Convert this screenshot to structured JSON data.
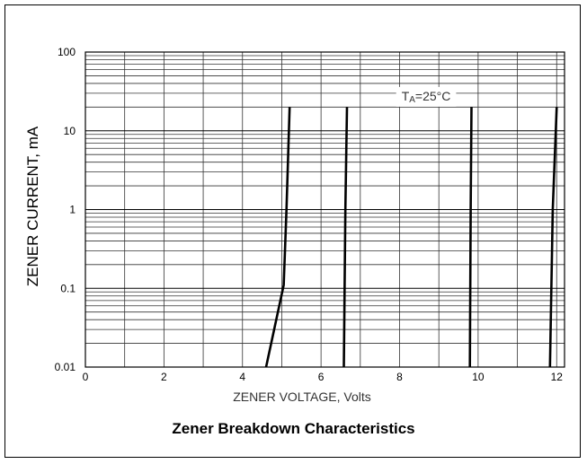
{
  "chart_data": {
    "type": "line",
    "title": "Zener Breakdown Characteristics",
    "xlabel": "ZENER VOLTAGE, Volts",
    "ylabel": "ZENER CURRENT, mA",
    "xlim": [
      0,
      12.2
    ],
    "ylim": [
      0.01,
      100
    ],
    "y_scale": "log",
    "grid": true,
    "x_ticks": [
      0,
      2,
      4,
      6,
      8,
      10,
      12
    ],
    "y_ticks": [
      0.01,
      0.1,
      1,
      10,
      100
    ],
    "x_tick_labels": [
      "0",
      "2",
      "4",
      "6",
      "8",
      "10",
      "12"
    ],
    "y_tick_labels": [
      "0.01",
      "0.1",
      "1",
      "10",
      "100"
    ],
    "annotation": {
      "prefix": "T",
      "subscript": "A",
      "suffix": "=25°C"
    },
    "series": [
      {
        "x": [
          4.6,
          5.05,
          5.12,
          5.2
        ],
        "y": [
          0.01,
          0.11,
          1,
          20
        ]
      },
      {
        "x": [
          6.58,
          6.62,
          6.66
        ],
        "y": [
          0.01,
          1,
          20
        ]
      },
      {
        "x": [
          9.79,
          9.81,
          9.83
        ],
        "y": [
          0.01,
          1,
          20
        ]
      },
      {
        "x": [
          11.83,
          11.9,
          12.0
        ],
        "y": [
          0.01,
          1,
          20
        ]
      }
    ]
  }
}
